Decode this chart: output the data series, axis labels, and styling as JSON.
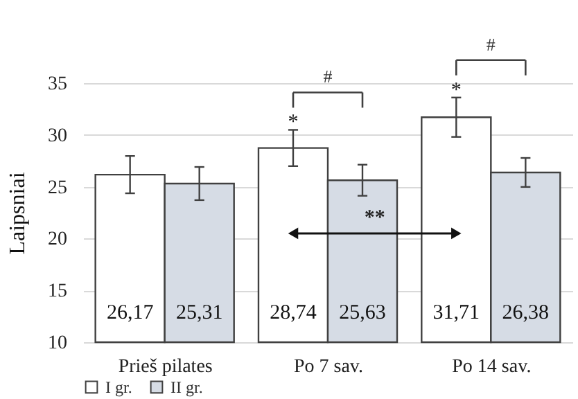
{
  "chart_data": {
    "type": "bar",
    "ylabel": "Laipsniai",
    "categories": [
      "Prieš pilates",
      "Po 7 sav.",
      "Po 14 sav."
    ],
    "series": [
      {
        "name": "I gr.",
        "color": "#ffffff",
        "values": [
          26.17,
          28.74,
          31.71
        ],
        "errors": [
          1.8,
          1.75,
          1.9
        ],
        "value_labels": [
          "26,17",
          "28,74",
          "31,71"
        ]
      },
      {
        "name": "II gr.",
        "color": "#d6dce5",
        "values": [
          25.31,
          25.63,
          26.38
        ],
        "errors": [
          1.6,
          1.5,
          1.4
        ],
        "value_labels": [
          "25,31",
          "25,63",
          "26,38"
        ]
      }
    ],
    "ylim": [
      10,
      35
    ],
    "yticks": [
      10,
      15,
      20,
      25,
      30,
      35
    ],
    "grid": "y",
    "legend": "bottom",
    "annotations": [
      {
        "text": "*",
        "x": "Po 7 sav.",
        "y": 28.74
      },
      {
        "text": "*",
        "x": "Po 14 sav.",
        "y": 31.71
      },
      "#",
      "#",
      "**"
    ]
  }
}
